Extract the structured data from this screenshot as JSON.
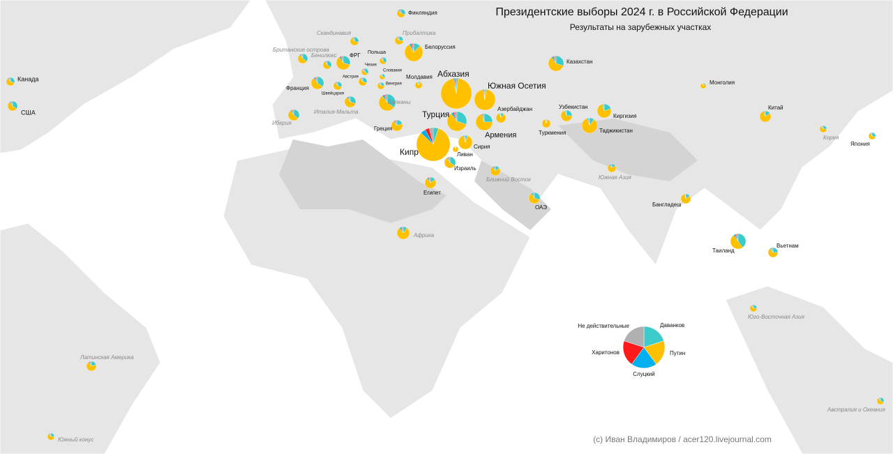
{
  "title": "Президентские выборы 2024 г. в Российской Федерации",
  "subtitle": "Результаты на зарубежных участках",
  "credit": "(c) Иван Владимиров / acer120.livejournal.com",
  "series": [
    {
      "name": "Даванков",
      "color": "#3ccbcb"
    },
    {
      "name": "Путин",
      "color": "#ffc000"
    },
    {
      "name": "Слуцкий",
      "color": "#00b0f0"
    },
    {
      "name": "Харитонов",
      "color": "#ff1a1a"
    },
    {
      "name": "Не действительные",
      "color": "#b0b0b0"
    }
  ],
  "countries": [
    {
      "label": "Финляндия",
      "shares": [
        30,
        55,
        3,
        2,
        10
      ]
    },
    {
      "label": "Белоруссия",
      "shares": [
        12,
        80,
        3,
        2,
        3
      ]
    },
    {
      "label": "ФРГ",
      "shares": [
        30,
        60,
        3,
        2,
        5
      ]
    },
    {
      "label": "Польша",
      "shares": [
        35,
        55,
        3,
        2,
        5
      ]
    },
    {
      "label": "Чехия",
      "shares": [
        35,
        50,
        3,
        2,
        10
      ]
    },
    {
      "label": "Словакия",
      "shares": [
        30,
        60,
        3,
        2,
        5
      ]
    },
    {
      "label": "Австрия",
      "shares": [
        30,
        60,
        3,
        2,
        5
      ]
    },
    {
      "label": "Венгрия",
      "shares": [
        25,
        65,
        3,
        2,
        5
      ]
    },
    {
      "label": "Молдавия",
      "shares": [
        8,
        85,
        3,
        2,
        2
      ]
    },
    {
      "label": "Франция",
      "shares": [
        35,
        55,
        3,
        2,
        5
      ]
    },
    {
      "label": "Швейцария",
      "shares": [
        30,
        60,
        3,
        2,
        5
      ]
    },
    {
      "label": "Абхазия",
      "shares": [
        2,
        95,
        1,
        1,
        1
      ]
    },
    {
      "label": "Южная Осетия",
      "shares": [
        2,
        95,
        1,
        1,
        1
      ]
    },
    {
      "label": "Азербайджан",
      "shares": [
        10,
        85,
        2,
        1,
        2
      ]
    },
    {
      "label": "Турция",
      "shares": [
        30,
        60,
        3,
        2,
        5
      ]
    },
    {
      "label": "Армения",
      "shares": [
        25,
        70,
        2,
        1,
        2
      ]
    },
    {
      "label": "Греция",
      "shares": [
        20,
        70,
        3,
        2,
        5
      ]
    },
    {
      "label": "Кипр",
      "shares": [
        5,
        82,
        5,
        4,
        4
      ]
    },
    {
      "label": "Сирия",
      "shares": [
        5,
        90,
        2,
        1,
        2
      ]
    },
    {
      "label": "Ливан",
      "shares": [
        5,
        90,
        2,
        1,
        2
      ]
    },
    {
      "label": "Израиль",
      "shares": [
        35,
        55,
        3,
        2,
        5
      ]
    },
    {
      "label": "Египет",
      "shares": [
        15,
        75,
        4,
        2,
        4
      ]
    },
    {
      "label": "ОАЭ",
      "shares": [
        30,
        60,
        3,
        2,
        5
      ]
    },
    {
      "label": "Казахстан",
      "shares": [
        30,
        60,
        3,
        2,
        5
      ]
    },
    {
      "label": "Монголия",
      "shares": [
        10,
        85,
        2,
        1,
        2
      ]
    },
    {
      "label": "Узбекистан",
      "shares": [
        25,
        70,
        2,
        1,
        2
      ]
    },
    {
      "label": "Киргизия",
      "shares": [
        20,
        75,
        2,
        1,
        2
      ]
    },
    {
      "label": "Туркмения",
      "shares": [
        5,
        92,
        1,
        1,
        1
      ]
    },
    {
      "label": "Таджикистан",
      "shares": [
        10,
        85,
        2,
        1,
        2
      ]
    },
    {
      "label": "Китай",
      "shares": [
        15,
        80,
        2,
        1,
        2
      ]
    },
    {
      "label": "Япония",
      "shares": [
        30,
        60,
        3,
        2,
        5
      ]
    },
    {
      "label": "Бангладеш",
      "shares": [
        15,
        80,
        2,
        1,
        2
      ]
    },
    {
      "label": "Таиланд",
      "shares": [
        40,
        50,
        3,
        2,
        5
      ]
    },
    {
      "label": "Вьетнам",
      "shares": [
        25,
        65,
        3,
        2,
        5
      ]
    },
    {
      "label": "Канада",
      "shares": [
        30,
        60,
        3,
        2,
        5
      ]
    },
    {
      "label": "США",
      "shares": [
        35,
        55,
        3,
        2,
        5
      ]
    }
  ],
  "regions": [
    {
      "label": "Скандинавия",
      "shares": [
        30,
        60,
        3,
        2,
        5
      ]
    },
    {
      "label": "Прибалтика",
      "shares": [
        25,
        65,
        3,
        2,
        5
      ]
    },
    {
      "label": "Британские острова",
      "shares": [
        35,
        55,
        3,
        2,
        5
      ]
    },
    {
      "label": "Бенилюкс",
      "shares": [
        35,
        55,
        3,
        2,
        5
      ]
    },
    {
      "label": "Балканы",
      "shares": [
        35,
        55,
        3,
        2,
        5
      ]
    },
    {
      "label": "Италия-Мальта",
      "shares": [
        30,
        60,
        3,
        2,
        5
      ]
    },
    {
      "label": "Иберия",
      "shares": [
        35,
        55,
        3,
        2,
        5
      ]
    },
    {
      "label": "Ближний Восток",
      "shares": [
        15,
        75,
        4,
        2,
        4
      ]
    },
    {
      "label": "Африка",
      "shares": [
        10,
        80,
        4,
        2,
        4
      ]
    },
    {
      "label": "Корея",
      "shares": [
        25,
        65,
        3,
        2,
        5
      ]
    },
    {
      "label": "Южная Азия",
      "shares": [
        15,
        75,
        4,
        2,
        4
      ]
    },
    {
      "label": "Юго-Восточная Азия",
      "shares": [
        25,
        65,
        3,
        2,
        5
      ]
    },
    {
      "label": "Австралия и Океания",
      "shares": [
        30,
        60,
        3,
        2,
        5
      ]
    },
    {
      "label": "Латинская Америка",
      "shares": [
        20,
        70,
        3,
        2,
        5
      ]
    },
    {
      "label": "Южный конус",
      "shares": [
        25,
        65,
        3,
        2,
        5
      ]
    }
  ]
}
